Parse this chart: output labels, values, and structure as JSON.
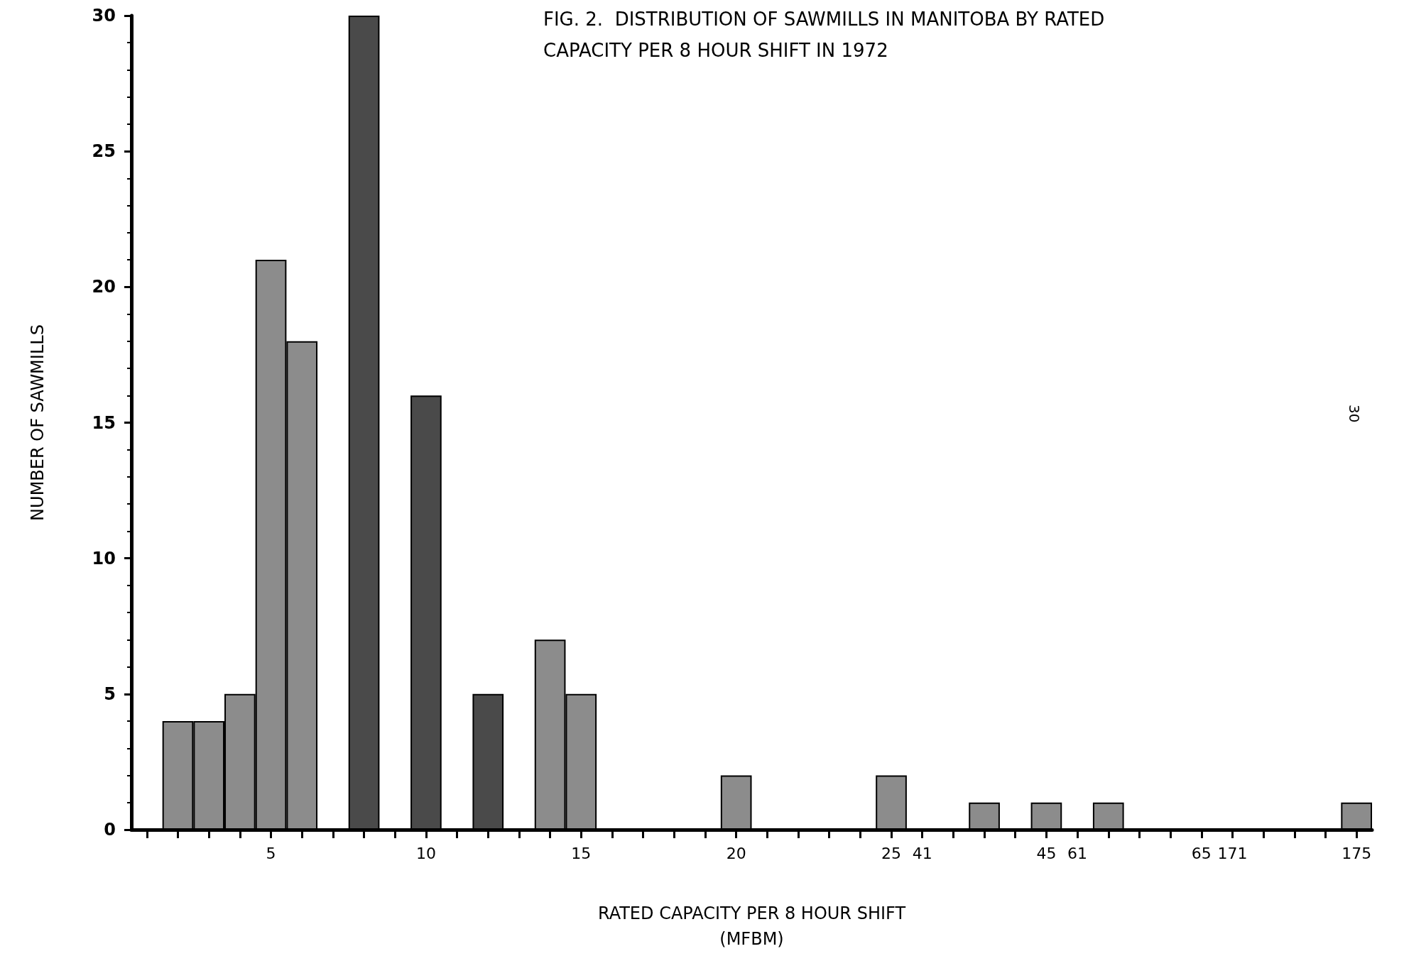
{
  "chart_data": {
    "type": "bar",
    "title": "FIG. 2.  DISTRIBUTION OF SAWMILLS IN MANITOBA BY RATED\nCAPACITY PER 8 HOUR SHIFT IN 1972",
    "xlabel": "RATED CAPACITY PER 8 HOUR SHIFT\n(MFBM)",
    "ylabel": "NUMBER OF SAWMILLS",
    "annotations": [
      "30"
    ],
    "categories": [
      null,
      null,
      null,
      null,
      "5",
      null,
      null,
      null,
      null,
      "10",
      null,
      null,
      null,
      null,
      "15",
      null,
      null,
      null,
      null,
      "20",
      null,
      null,
      null,
      null,
      "25",
      "41",
      null,
      null,
      null,
      "45",
      "61",
      null,
      null,
      null,
      "65",
      "171",
      null,
      null,
      null,
      "175"
    ],
    "values": [
      0,
      4,
      4,
      5,
      21,
      18,
      0,
      30,
      0,
      16,
      0,
      5,
      0,
      7,
      5,
      0,
      0,
      0,
      0,
      2,
      0,
      0,
      0,
      0,
      2,
      0,
      0,
      1,
      0,
      1,
      0,
      1,
      0,
      0,
      0,
      0,
      0,
      0,
      0,
      1
    ],
    "colors": [
      "#8c8c8c",
      "#8c8c8c",
      "#8c8c8c",
      "#8c8c8c",
      "#8c8c8c",
      "#8c8c8c",
      "#8c8c8c",
      "#4a4a4a",
      "#8c8c8c",
      "#4a4a4a",
      "#8c8c8c",
      "#4a4a4a",
      "#8c8c8c",
      "#8c8c8c",
      "#8c8c8c",
      "#8c8c8c",
      "#8c8c8c",
      "#8c8c8c",
      "#8c8c8c",
      "#8c8c8c",
      "#8c8c8c",
      "#8c8c8c",
      "#8c8c8c",
      "#8c8c8c",
      "#8c8c8c",
      "#8c8c8c",
      "#8c8c8c",
      "#8c8c8c",
      "#8c8c8c",
      "#8c8c8c",
      "#8c8c8c",
      "#8c8c8c",
      "#8c8c8c",
      "#8c8c8c",
      "#8c8c8c",
      "#8c8c8c",
      "#8c8c8c",
      "#8c8c8c",
      "#8c8c8c",
      "#8c8c8c"
    ],
    "ylim": [
      0,
      30
    ],
    "yticks": [
      0,
      5,
      10,
      15,
      20,
      25,
      30
    ],
    "grid": false
  }
}
